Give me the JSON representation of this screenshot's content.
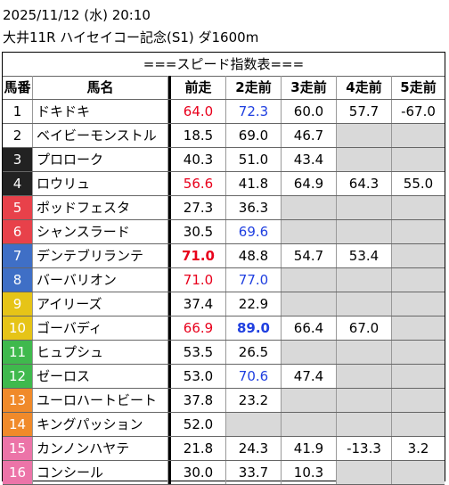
{
  "header": {
    "datetime": "2025/11/12 (水) 20:10",
    "race": "大井11R ハイセイコー記念(S1) ダ1600m"
  },
  "table": {
    "banner": "===スピード指数表===",
    "columns": [
      "馬番",
      "馬名",
      "前走",
      "2走前",
      "3走前",
      "4走前",
      "5走前"
    ],
    "rows": [
      {
        "no": "1",
        "name": "ドキドキ",
        "bg": "#ffffff",
        "fg": "#000000",
        "v": [
          "64.0",
          "72.3",
          "60.0",
          "57.7",
          "-67.0"
        ],
        "c": [
          "red",
          "blue",
          "",
          "",
          ""
        ]
      },
      {
        "no": "2",
        "name": "ベイビーモンストル",
        "bg": "#ffffff",
        "fg": "#000000",
        "v": [
          "18.5",
          "69.0",
          "46.7",
          null,
          null
        ],
        "c": [
          "",
          "",
          "",
          "",
          ""
        ]
      },
      {
        "no": "3",
        "name": "プロローク",
        "bg": "#222222",
        "fg": "#ffffff",
        "v": [
          "40.3",
          "51.0",
          "43.4",
          null,
          null
        ],
        "c": [
          "",
          "",
          "",
          "",
          ""
        ]
      },
      {
        "no": "4",
        "name": "ロウリュ",
        "bg": "#222222",
        "fg": "#ffffff",
        "v": [
          "56.6",
          "41.8",
          "64.9",
          "64.3",
          "55.0"
        ],
        "c": [
          "red",
          "",
          "",
          "",
          ""
        ]
      },
      {
        "no": "5",
        "name": "ポッドフェスタ",
        "bg": "#e8414a",
        "fg": "#ffffff",
        "v": [
          "27.3",
          "36.3",
          null,
          null,
          null
        ],
        "c": [
          "",
          "",
          "",
          "",
          ""
        ]
      },
      {
        "no": "6",
        "name": "シャンスラード",
        "bg": "#e8414a",
        "fg": "#ffffff",
        "v": [
          "30.5",
          "69.6",
          null,
          null,
          null
        ],
        "c": [
          "",
          "blue",
          "",
          "",
          ""
        ]
      },
      {
        "no": "7",
        "name": "デンテブリランテ",
        "bg": "#3f6fc6",
        "fg": "#ffffff",
        "v": [
          "71.0",
          "48.8",
          "54.7",
          "53.4",
          null
        ],
        "c": [
          "red bold",
          "",
          "",
          "",
          ""
        ]
      },
      {
        "no": "8",
        "name": "バーバリオン",
        "bg": "#3f6fc6",
        "fg": "#ffffff",
        "v": [
          "71.0",
          "77.0",
          null,
          null,
          null
        ],
        "c": [
          "red",
          "blue",
          "",
          "",
          ""
        ]
      },
      {
        "no": "9",
        "name": "アイリーズ",
        "bg": "#e6c417",
        "fg": "#ffffff",
        "v": [
          "37.4",
          "22.9",
          null,
          null,
          null
        ],
        "c": [
          "",
          "",
          "",
          "",
          ""
        ]
      },
      {
        "no": "10",
        "name": "ゴーバディ",
        "bg": "#e6c417",
        "fg": "#ffffff",
        "v": [
          "66.9",
          "89.0",
          "66.4",
          "67.0",
          null
        ],
        "c": [
          "red",
          "blue bold",
          "",
          "",
          ""
        ]
      },
      {
        "no": "11",
        "name": "ヒュプシュ",
        "bg": "#3fb94d",
        "fg": "#ffffff",
        "v": [
          "53.5",
          "26.5",
          null,
          null,
          null
        ],
        "c": [
          "",
          "",
          "",
          "",
          ""
        ]
      },
      {
        "no": "12",
        "name": "ゼーロス",
        "bg": "#3fb94d",
        "fg": "#ffffff",
        "v": [
          "53.0",
          "70.6",
          "47.4",
          null,
          null
        ],
        "c": [
          "",
          "blue",
          "",
          "",
          ""
        ]
      },
      {
        "no": "13",
        "name": "ユーロハートビート",
        "bg": "#f08a2a",
        "fg": "#ffffff",
        "v": [
          "37.8",
          "23.2",
          null,
          null,
          null
        ],
        "c": [
          "",
          "",
          "",
          "",
          ""
        ]
      },
      {
        "no": "14",
        "name": "キングパッション",
        "bg": "#f08a2a",
        "fg": "#ffffff",
        "v": [
          "52.0",
          null,
          null,
          null,
          null
        ],
        "c": [
          "",
          "",
          "",
          "",
          ""
        ]
      },
      {
        "no": "15",
        "name": "カンノンハヤテ",
        "bg": "#ec74a8",
        "fg": "#ffffff",
        "v": [
          "21.8",
          "24.3",
          "41.9",
          "-13.3",
          "3.2"
        ],
        "c": [
          "",
          "",
          "",
          "",
          ""
        ]
      },
      {
        "no": "16",
        "name": "コンシール",
        "bg": "#ec74a8",
        "fg": "#ffffff",
        "v": [
          "30.0",
          "33.7",
          "10.3",
          null,
          null
        ],
        "c": [
          "",
          "",
          "",
          "",
          ""
        ]
      }
    ]
  }
}
